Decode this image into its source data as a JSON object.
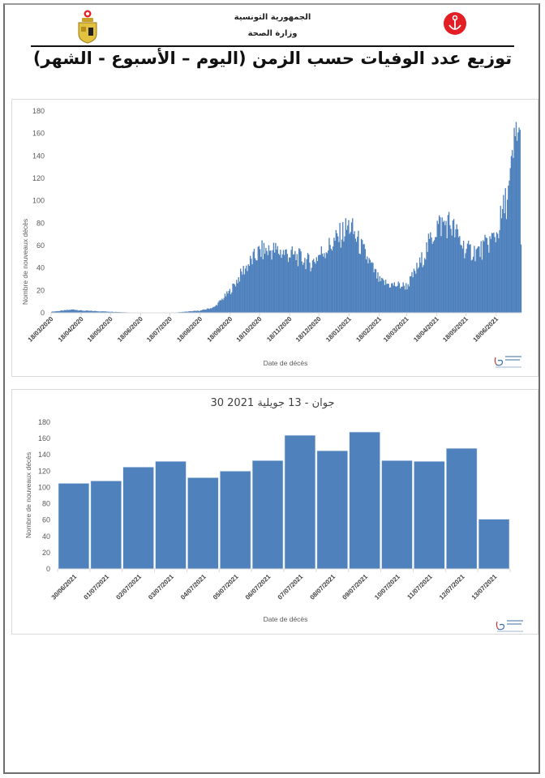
{
  "header": {
    "line1": "الجمهورية التونسية",
    "line2": "وزارة الصحة",
    "title": "توزيع عدد الوفيات حسب الزمن (اليوم – الأسبوع - الشهر)",
    "logo_left": "tunisia-coat-of-arms-icon",
    "logo_right": "red-crescent-anchor-icon"
  },
  "colors": {
    "bar": "#4f81bd",
    "axis_text": "#595959",
    "frame": "#6e6e6e",
    "red_logo": "#e31e24"
  },
  "chart_data": [
    {
      "type": "bar",
      "title": "",
      "xlabel": "Date de décès",
      "ylabel": "Nombre de nouveaux décès",
      "ylim": [
        0,
        180
      ],
      "yticks": [
        0,
        20,
        40,
        60,
        80,
        100,
        120,
        140,
        160,
        180
      ],
      "grid": false,
      "x_range": [
        "18/03/2020",
        "13/07/2021"
      ],
      "tick_labels": [
        "18/03/2020",
        "18/04/2020",
        "18/05/2020",
        "18/06/2020",
        "18/07/2020",
        "18/08/2020",
        "18/09/2020",
        "18/10/2020",
        "18/11/2020",
        "18/12/2020",
        "18/01/2021",
        "18/02/2021",
        "18/03/2021",
        "18/04/2021",
        "18/05/2021",
        "18/06/2021"
      ],
      "note": "Daily deaths series; values estimated from bar heights at monthly anchors (interpolated daily)",
      "anchors": [
        {
          "date": "18/03/2020",
          "value": 1
        },
        {
          "date": "10/04/2020",
          "value": 3
        },
        {
          "date": "18/04/2020",
          "value": 2
        },
        {
          "date": "18/05/2020",
          "value": 1
        },
        {
          "date": "18/06/2020",
          "value": 0
        },
        {
          "date": "18/07/2020",
          "value": 0
        },
        {
          "date": "18/08/2020",
          "value": 2
        },
        {
          "date": "01/09/2020",
          "value": 5
        },
        {
          "date": "18/09/2020",
          "value": 20
        },
        {
          "date": "01/10/2020",
          "value": 38
        },
        {
          "date": "18/10/2020",
          "value": 55
        },
        {
          "date": "01/11/2020",
          "value": 56
        },
        {
          "date": "18/11/2020",
          "value": 52
        },
        {
          "date": "01/12/2020",
          "value": 48
        },
        {
          "date": "10/12/2020",
          "value": 44
        },
        {
          "date": "18/12/2020",
          "value": 52
        },
        {
          "date": "01/01/2021",
          "value": 62
        },
        {
          "date": "18/01/2021",
          "value": 78
        },
        {
          "date": "01/02/2021",
          "value": 55
        },
        {
          "date": "18/02/2021",
          "value": 28
        },
        {
          "date": "01/03/2021",
          "value": 25
        },
        {
          "date": "18/03/2021",
          "value": 24
        },
        {
          "date": "01/04/2021",
          "value": 45
        },
        {
          "date": "18/04/2021",
          "value": 78
        },
        {
          "date": "01/05/2021",
          "value": 80
        },
        {
          "date": "18/05/2021",
          "value": 55
        },
        {
          "date": "01/06/2021",
          "value": 55
        },
        {
          "date": "18/06/2021",
          "value": 70
        },
        {
          "date": "01/07/2021",
          "value": 110
        },
        {
          "date": "09/07/2021",
          "value": 168
        },
        {
          "date": "12/07/2021",
          "value": 148
        },
        {
          "date": "13/07/2021",
          "value": 61
        }
      ]
    },
    {
      "type": "bar",
      "title": "30 جوان - 13 جويلية 2021",
      "xlabel": "Date de décès",
      "ylabel": "Nombre de nouveaux décès",
      "ylim": [
        0,
        180
      ],
      "yticks": [
        0,
        20,
        40,
        60,
        80,
        100,
        120,
        140,
        160,
        180
      ],
      "grid": false,
      "categories": [
        "30/06/2021",
        "01/07/2021",
        "02/07/2021",
        "03/07/2021",
        "04/07/2021",
        "05/07/2021",
        "06/07/2021",
        "07/07/2021",
        "08/07/2021",
        "09/07/2021",
        "10/07/2021",
        "11/07/2021",
        "12/07/2021",
        "13/07/2021"
      ],
      "values": [
        105,
        108,
        125,
        132,
        112,
        120,
        133,
        164,
        145,
        168,
        133,
        132,
        148,
        61
      ]
    }
  ]
}
